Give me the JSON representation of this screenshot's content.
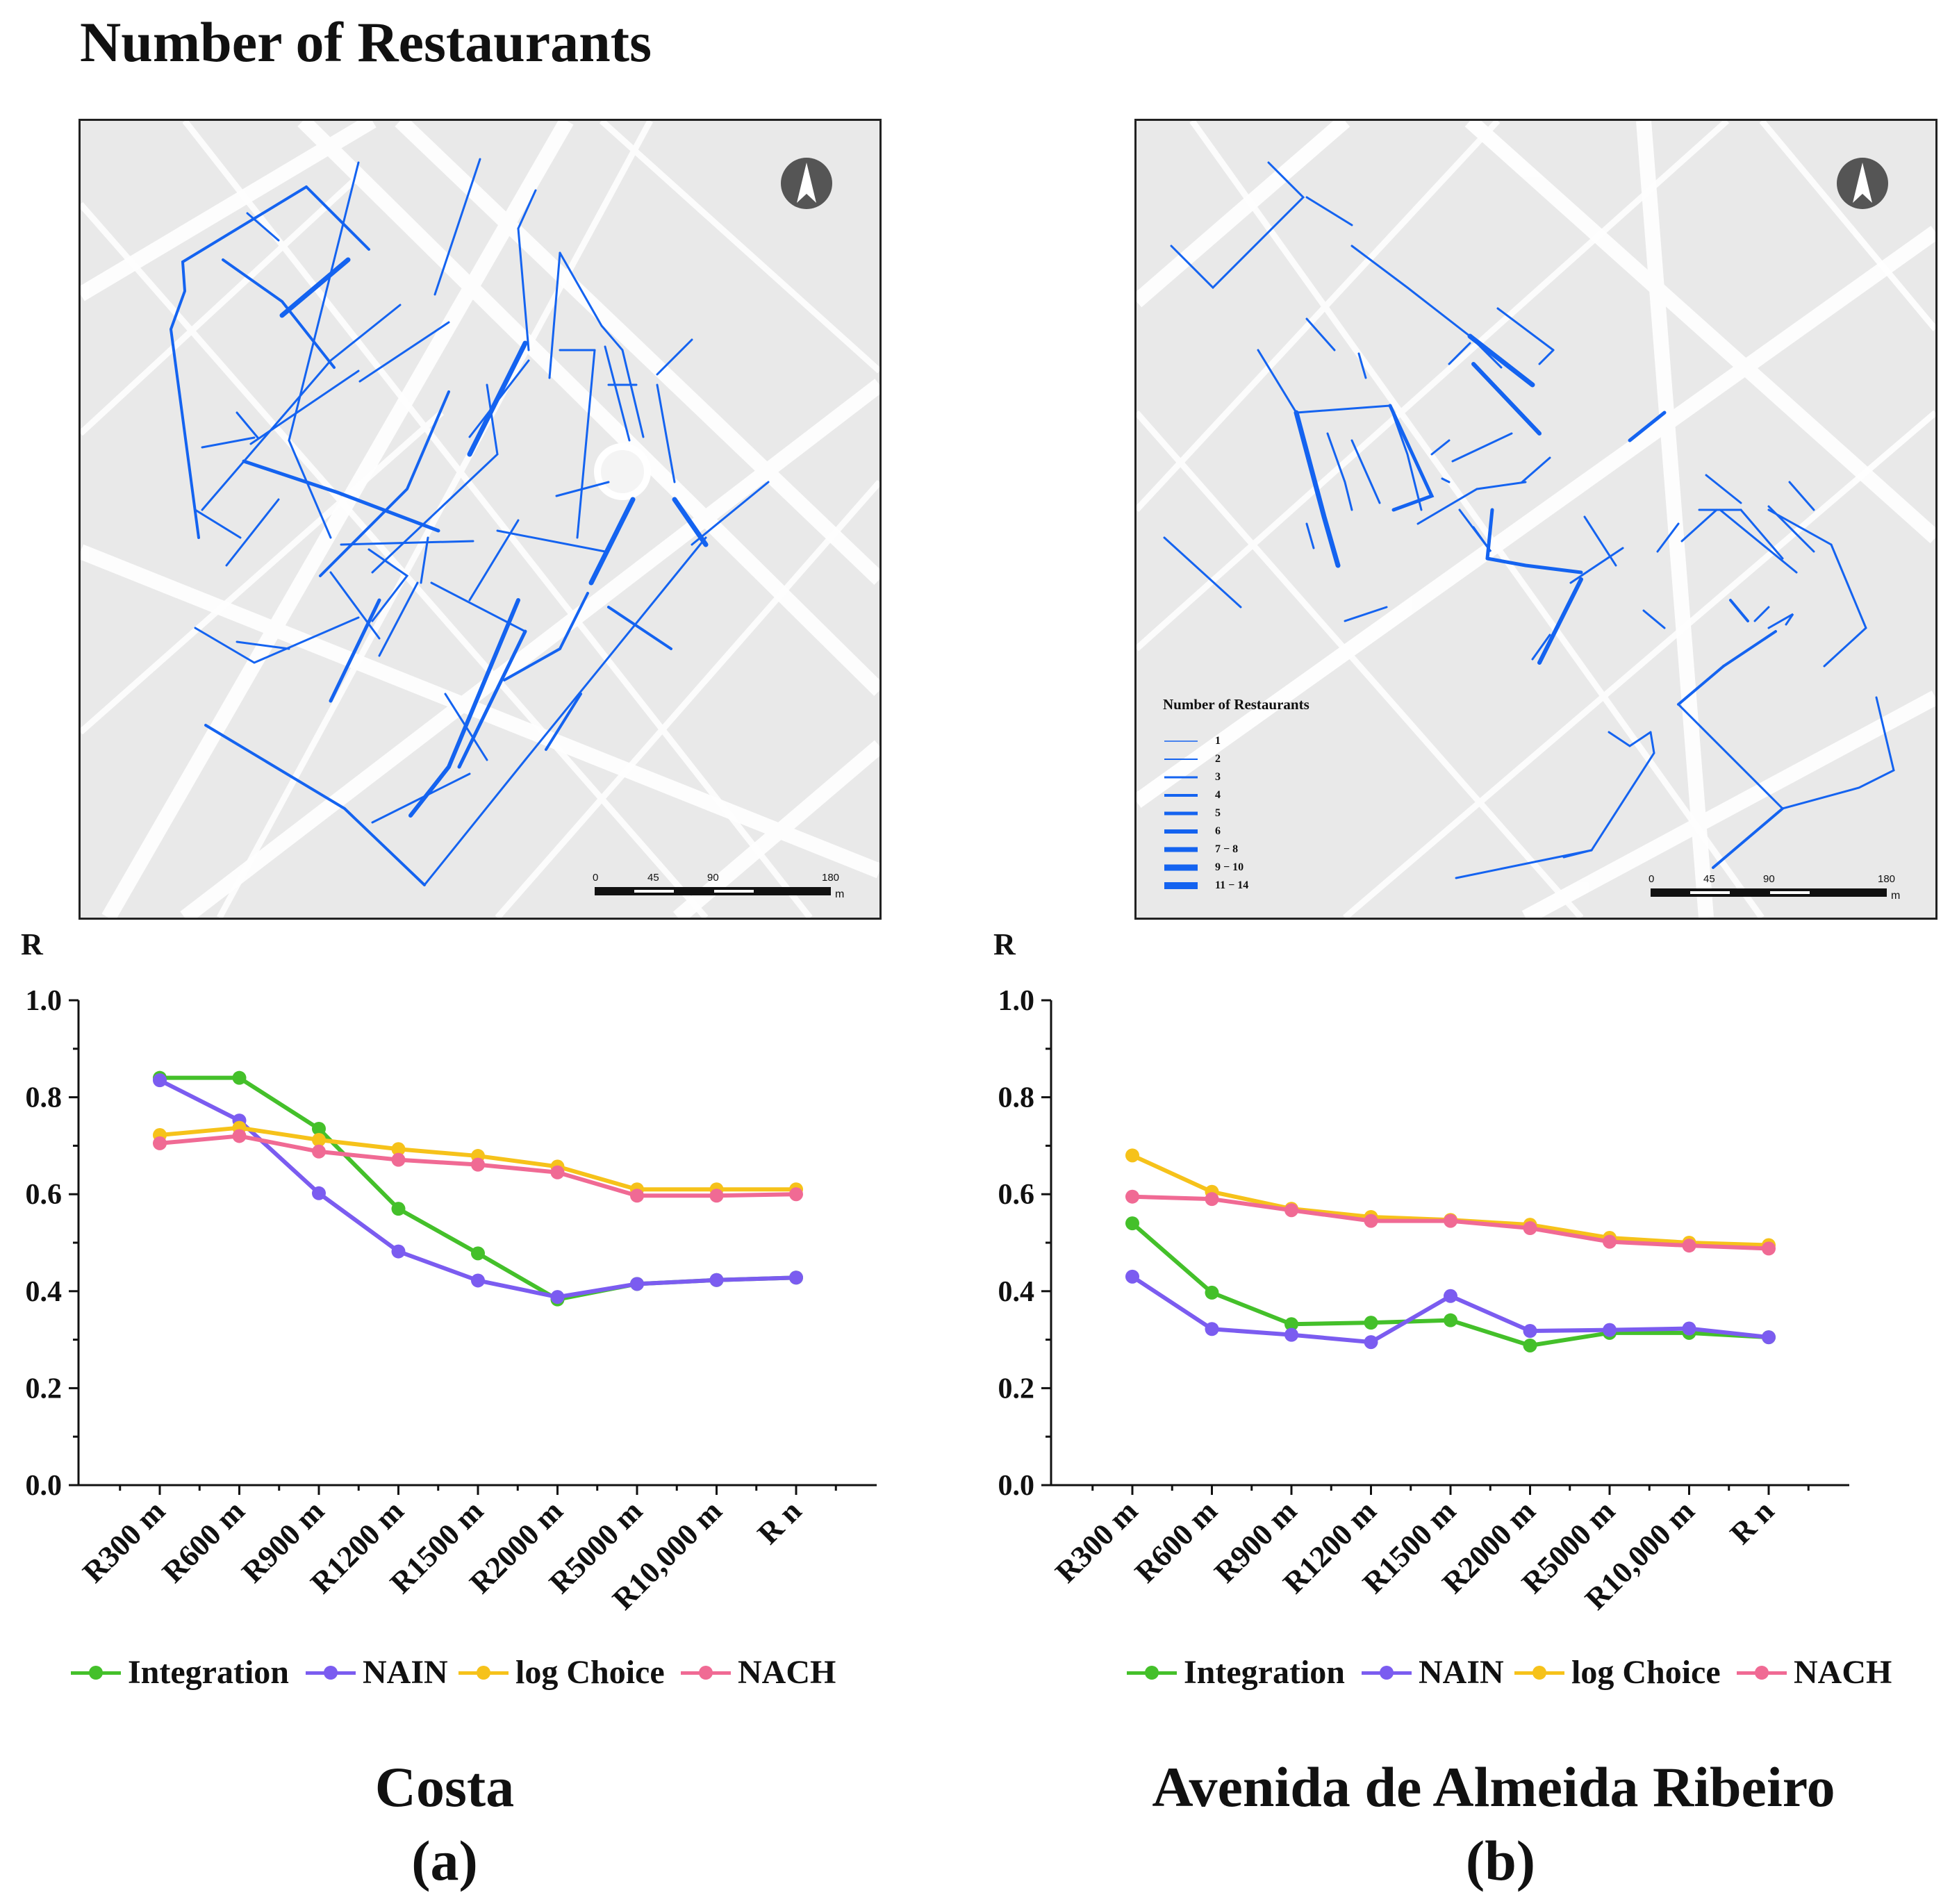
{
  "figure_title": "Number of Restaurants",
  "colors": {
    "Integration": "#44c02a",
    "NAIN": "#7b5cf0",
    "log Choice": "#f6c21a",
    "NACH": "#f06a94",
    "street": "#1463f0",
    "map_bg": "#e9e9e9"
  },
  "maps": [
    {
      "id": "a",
      "north_icon": "north-arrow-icon",
      "scale": {
        "labels": [
          "0",
          "45",
          "90",
          "180"
        ],
        "unit": "m"
      },
      "legend": null
    },
    {
      "id": "b",
      "north_icon": "north-arrow-icon",
      "scale": {
        "labels": [
          "0",
          "45",
          "90",
          "180"
        ],
        "unit": "m"
      },
      "legend": {
        "title": "Number of Restaurants",
        "classes": [
          "1",
          "2",
          "3",
          "4",
          "5",
          "6",
          "7 − 8",
          "9 − 10",
          "11 − 14"
        ]
      }
    }
  ],
  "chart_data": [
    {
      "type": "line",
      "id": "a",
      "title": "Costa",
      "caption": "(a)",
      "ylabel": "R",
      "xlabel": "",
      "ylim": [
        0,
        1.0
      ],
      "yticks": [
        "0.0",
        "0.2",
        "0.4",
        "0.6",
        "0.8",
        "1.0"
      ],
      "categories": [
        "R300 m",
        "R600 m",
        "R900 m",
        "R1200 m",
        "R1500 m",
        "R2000 m",
        "R5000 m",
        "R10,000 m",
        "R n"
      ],
      "series": [
        {
          "name": "Integration",
          "values": [
            0.84,
            0.84,
            0.735,
            0.57,
            0.478,
            0.383,
            0.415,
            0.423,
            0.428
          ]
        },
        {
          "name": "NAIN",
          "values": [
            0.835,
            0.752,
            0.602,
            0.482,
            0.422,
            0.388,
            0.415,
            0.423,
            0.428
          ]
        },
        {
          "name": "log Choice",
          "values": [
            0.722,
            0.737,
            0.712,
            0.693,
            0.679,
            0.657,
            0.61,
            0.61,
            0.61
          ]
        },
        {
          "name": "NACH",
          "values": [
            0.705,
            0.72,
            0.688,
            0.671,
            0.661,
            0.645,
            0.597,
            0.597,
            0.6
          ]
        }
      ],
      "legend_entries": [
        "Integration",
        "NAIN",
        "log Choice",
        "NACH"
      ]
    },
    {
      "type": "line",
      "id": "b",
      "title": "Avenida de Almeida Ribeiro",
      "caption": "(b)",
      "ylabel": "R",
      "xlabel": "",
      "ylim": [
        0,
        1.0
      ],
      "yticks": [
        "0.0",
        "0.2",
        "0.4",
        "0.6",
        "0.8",
        "1.0"
      ],
      "categories": [
        "R300 m",
        "R600 m",
        "R900 m",
        "R1200 m",
        "R1500 m",
        "R2000 m",
        "R5000 m",
        "R10,000 m",
        "R n"
      ],
      "series": [
        {
          "name": "Integration",
          "values": [
            0.54,
            0.397,
            0.332,
            0.335,
            0.34,
            0.288,
            0.314,
            0.314,
            0.305
          ]
        },
        {
          "name": "NAIN",
          "values": [
            0.43,
            0.322,
            0.31,
            0.295,
            0.39,
            0.318,
            0.32,
            0.323,
            0.305
          ]
        },
        {
          "name": "log Choice",
          "values": [
            0.68,
            0.605,
            0.57,
            0.553,
            0.547,
            0.537,
            0.51,
            0.5,
            0.495
          ]
        },
        {
          "name": "NACH",
          "values": [
            0.595,
            0.59,
            0.567,
            0.545,
            0.545,
            0.53,
            0.502,
            0.494,
            0.488
          ]
        }
      ],
      "legend_entries": [
        "Integration",
        "NAIN",
        "log Choice",
        "NACH"
      ]
    }
  ]
}
